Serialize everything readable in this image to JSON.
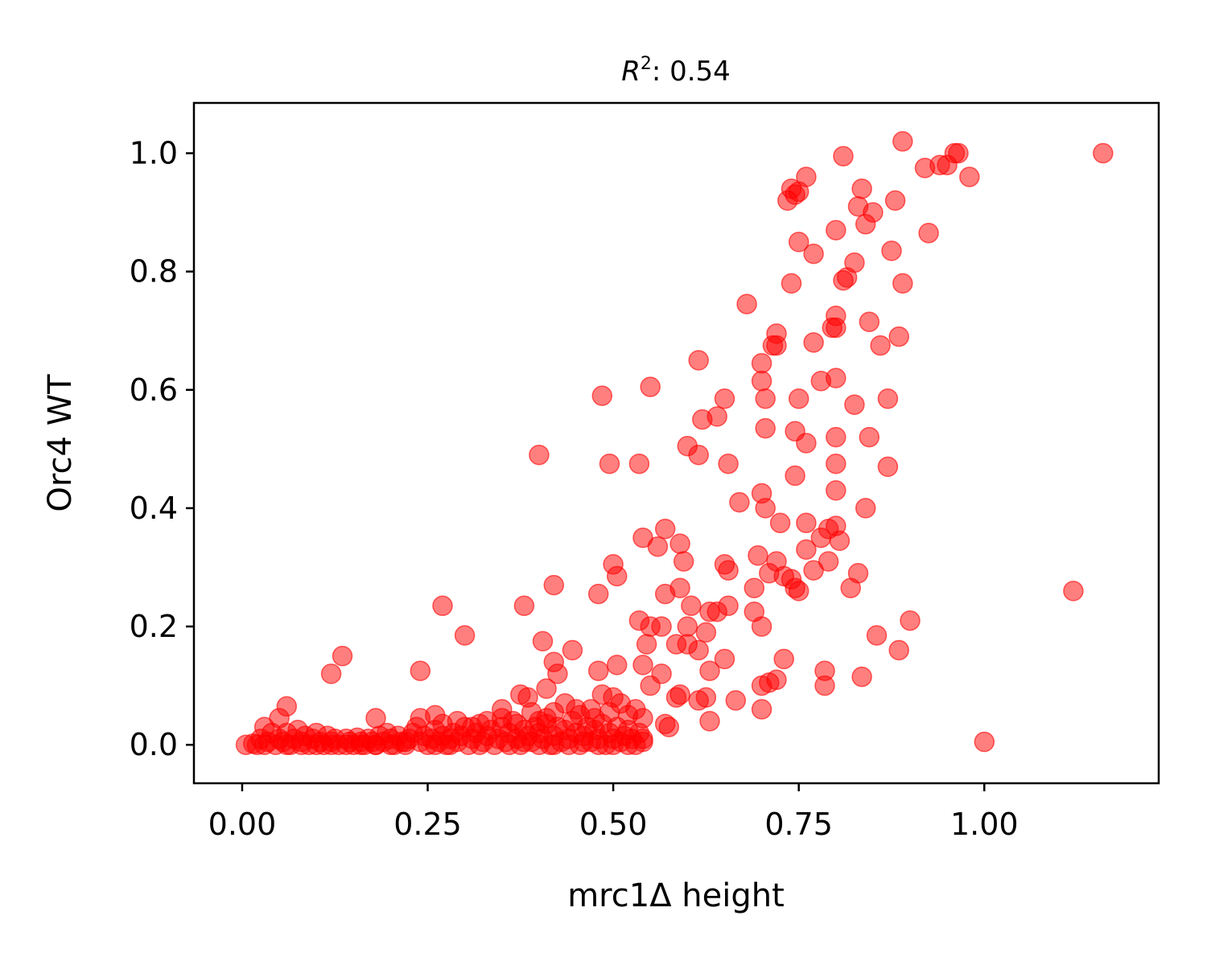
{
  "chart_data": {
    "type": "scatter",
    "title_main": "R",
    "title_sup": "2",
    "title_rest": ": 0.54",
    "xlabel": "mrc1Δ height",
    "ylabel": "Orc4 WT",
    "xlim": [
      -0.065,
      1.235
    ],
    "ylim": [
      -0.065,
      1.085
    ],
    "xticks": [
      0.0,
      0.25,
      0.5,
      0.75,
      1.0
    ],
    "xtick_labels": [
      "0.00",
      "0.25",
      "0.50",
      "0.75",
      "1.00"
    ],
    "yticks": [
      0.0,
      0.2,
      0.4,
      0.6,
      0.8,
      1.0
    ],
    "ytick_labels": [
      "0.0",
      "0.2",
      "0.4",
      "0.6",
      "0.8",
      "1.0"
    ],
    "point_color": "#ff0000",
    "point_alpha": 0.5,
    "points": [
      [
        0.89,
        1.02
      ],
      [
        0.96,
        1.0
      ],
      [
        0.965,
        1.0
      ],
      [
        1.16,
        1.0
      ],
      [
        0.94,
        0.98
      ],
      [
        0.95,
        0.98
      ],
      [
        0.92,
        0.975
      ],
      [
        0.98,
        0.96
      ],
      [
        0.81,
        0.995
      ],
      [
        0.76,
        0.96
      ],
      [
        0.74,
        0.94
      ],
      [
        0.745,
        0.93
      ],
      [
        0.75,
        0.935
      ],
      [
        0.735,
        0.92
      ],
      [
        0.835,
        0.94
      ],
      [
        0.83,
        0.91
      ],
      [
        0.84,
        0.88
      ],
      [
        0.85,
        0.9
      ],
      [
        0.88,
        0.92
      ],
      [
        0.925,
        0.865
      ],
      [
        0.75,
        0.85
      ],
      [
        0.77,
        0.83
      ],
      [
        0.8,
        0.87
      ],
      [
        0.825,
        0.815
      ],
      [
        0.815,
        0.79
      ],
      [
        0.81,
        0.785
      ],
      [
        0.875,
        0.835
      ],
      [
        0.89,
        0.78
      ],
      [
        0.74,
        0.78
      ],
      [
        0.68,
        0.745
      ],
      [
        0.8,
        0.725
      ],
      [
        0.8,
        0.705
      ],
      [
        0.795,
        0.705
      ],
      [
        0.845,
        0.715
      ],
      [
        0.885,
        0.69
      ],
      [
        0.86,
        0.675
      ],
      [
        0.72,
        0.695
      ],
      [
        0.715,
        0.675
      ],
      [
        0.72,
        0.675
      ],
      [
        0.77,
        0.68
      ],
      [
        0.615,
        0.65
      ],
      [
        0.7,
        0.645
      ],
      [
        0.7,
        0.615
      ],
      [
        0.78,
        0.615
      ],
      [
        0.8,
        0.62
      ],
      [
        0.55,
        0.605
      ],
      [
        0.485,
        0.59
      ],
      [
        0.65,
        0.585
      ],
      [
        0.705,
        0.585
      ],
      [
        0.75,
        0.585
      ],
      [
        0.825,
        0.575
      ],
      [
        0.87,
        0.585
      ],
      [
        0.62,
        0.55
      ],
      [
        0.64,
        0.555
      ],
      [
        0.705,
        0.535
      ],
      [
        0.745,
        0.53
      ],
      [
        0.76,
        0.51
      ],
      [
        0.8,
        0.52
      ],
      [
        0.845,
        0.52
      ],
      [
        0.6,
        0.505
      ],
      [
        0.615,
        0.49
      ],
      [
        0.4,
        0.49
      ],
      [
        0.495,
        0.475
      ],
      [
        0.535,
        0.475
      ],
      [
        0.655,
        0.475
      ],
      [
        0.745,
        0.455
      ],
      [
        0.8,
        0.475
      ],
      [
        0.87,
        0.47
      ],
      [
        0.7,
        0.425
      ],
      [
        0.8,
        0.43
      ],
      [
        0.67,
        0.41
      ],
      [
        0.705,
        0.4
      ],
      [
        0.84,
        0.4
      ],
      [
        0.725,
        0.375
      ],
      [
        0.76,
        0.375
      ],
      [
        0.79,
        0.365
      ],
      [
        0.8,
        0.37
      ],
      [
        0.78,
        0.35
      ],
      [
        0.54,
        0.35
      ],
      [
        0.57,
        0.365
      ],
      [
        0.59,
        0.34
      ],
      [
        0.56,
        0.335
      ],
      [
        0.595,
        0.31
      ],
      [
        0.695,
        0.32
      ],
      [
        0.72,
        0.31
      ],
      [
        0.76,
        0.33
      ],
      [
        0.79,
        0.31
      ],
      [
        0.805,
        0.345
      ],
      [
        0.5,
        0.305
      ],
      [
        0.505,
        0.285
      ],
      [
        0.65,
        0.305
      ],
      [
        0.655,
        0.295
      ],
      [
        0.71,
        0.29
      ],
      [
        0.73,
        0.285
      ],
      [
        0.74,
        0.28
      ],
      [
        0.745,
        0.265
      ],
      [
        0.75,
        0.26
      ],
      [
        0.77,
        0.295
      ],
      [
        0.83,
        0.29
      ],
      [
        0.82,
        0.265
      ],
      [
        0.42,
        0.27
      ],
      [
        0.48,
        0.255
      ],
      [
        0.57,
        0.255
      ],
      [
        0.59,
        0.265
      ],
      [
        0.69,
        0.265
      ],
      [
        0.27,
        0.235
      ],
      [
        0.38,
        0.235
      ],
      [
        0.605,
        0.235
      ],
      [
        0.63,
        0.225
      ],
      [
        0.64,
        0.225
      ],
      [
        0.655,
        0.235
      ],
      [
        0.69,
        0.225
      ],
      [
        0.7,
        0.2
      ],
      [
        0.535,
        0.21
      ],
      [
        0.55,
        0.2
      ],
      [
        0.565,
        0.2
      ],
      [
        0.545,
        0.17
      ],
      [
        0.6,
        0.2
      ],
      [
        0.625,
        0.19
      ],
      [
        0.6,
        0.17
      ],
      [
        0.615,
        0.16
      ],
      [
        0.585,
        0.17
      ],
      [
        0.3,
        0.185
      ],
      [
        0.405,
        0.175
      ],
      [
        0.445,
        0.16
      ],
      [
        0.855,
        0.185
      ],
      [
        0.9,
        0.21
      ],
      [
        0.885,
        0.16
      ],
      [
        1.12,
        0.26
      ],
      [
        0.12,
        0.12
      ],
      [
        0.135,
        0.15
      ],
      [
        0.24,
        0.125
      ],
      [
        0.42,
        0.14
      ],
      [
        0.425,
        0.12
      ],
      [
        0.48,
        0.125
      ],
      [
        0.505,
        0.135
      ],
      [
        0.54,
        0.135
      ],
      [
        0.565,
        0.12
      ],
      [
        0.63,
        0.125
      ],
      [
        0.65,
        0.145
      ],
      [
        0.73,
        0.145
      ],
      [
        0.71,
        0.105
      ],
      [
        0.72,
        0.11
      ],
      [
        0.7,
        0.1
      ],
      [
        0.785,
        0.125
      ],
      [
        0.785,
        0.1
      ],
      [
        0.835,
        0.115
      ],
      [
        0.41,
        0.095
      ],
      [
        0.375,
        0.085
      ],
      [
        0.385,
        0.08
      ],
      [
        0.485,
        0.085
      ],
      [
        0.5,
        0.08
      ],
      [
        0.55,
        0.1
      ],
      [
        0.59,
        0.085
      ],
      [
        0.585,
        0.08
      ],
      [
        0.615,
        0.075
      ],
      [
        0.625,
        0.08
      ],
      [
        0.665,
        0.075
      ],
      [
        0.7,
        0.06
      ],
      [
        0.57,
        0.035
      ],
      [
        0.575,
        0.03
      ],
      [
        0.63,
        0.04
      ],
      [
        0.06,
        0.065
      ],
      [
        0.05,
        0.045
      ],
      [
        0.18,
        0.045
      ],
      [
        0.24,
        0.045
      ],
      [
        0.26,
        0.05
      ],
      [
        0.35,
        0.06
      ],
      [
        0.41,
        0.045
      ],
      [
        0.45,
        0.06
      ],
      [
        0.47,
        0.06
      ],
      [
        1.0,
        0.005
      ],
      [
        0.005,
        0.0
      ],
      [
        0.015,
        0.002
      ],
      [
        0.025,
        0.01
      ],
      [
        0.03,
        0.03
      ],
      [
        0.035,
        0.005
      ],
      [
        0.04,
        0.02
      ],
      [
        0.045,
        0.0
      ],
      [
        0.05,
        0.01
      ],
      [
        0.055,
        0.005
      ],
      [
        0.06,
        0.02
      ],
      [
        0.065,
        0.0
      ],
      [
        0.07,
        0.01
      ],
      [
        0.075,
        0.025
      ],
      [
        0.08,
        0.005
      ],
      [
        0.085,
        0.015
      ],
      [
        0.09,
        0.0
      ],
      [
        0.095,
        0.01
      ],
      [
        0.1,
        0.02
      ],
      [
        0.105,
        0.005
      ],
      [
        0.11,
        0.0
      ],
      [
        0.115,
        0.015
      ],
      [
        0.12,
        0.005
      ],
      [
        0.125,
        0.01
      ],
      [
        0.13,
        0.0
      ],
      [
        0.14,
        0.01
      ],
      [
        0.145,
        0.005
      ],
      [
        0.15,
        0.0
      ],
      [
        0.155,
        0.012
      ],
      [
        0.16,
        0.005
      ],
      [
        0.165,
        0.0
      ],
      [
        0.17,
        0.01
      ],
      [
        0.175,
        0.005
      ],
      [
        0.18,
        0.0
      ],
      [
        0.185,
        0.015
      ],
      [
        0.19,
        0.005
      ],
      [
        0.195,
        0.02
      ],
      [
        0.2,
        0.01
      ],
      [
        0.205,
        0.0
      ],
      [
        0.21,
        0.015
      ],
      [
        0.215,
        0.005
      ],
      [
        0.22,
        0.0
      ],
      [
        0.225,
        0.01
      ],
      [
        0.23,
        0.02
      ],
      [
        0.235,
        0.03
      ],
      [
        0.24,
        0.005
      ],
      [
        0.245,
        0.015
      ],
      [
        0.25,
        0.0
      ],
      [
        0.255,
        0.01
      ],
      [
        0.26,
        0.025
      ],
      [
        0.265,
        0.005
      ],
      [
        0.27,
        0.015
      ],
      [
        0.275,
        0.0
      ],
      [
        0.28,
        0.01
      ],
      [
        0.285,
        0.02
      ],
      [
        0.29,
        0.005
      ],
      [
        0.295,
        0.015
      ],
      [
        0.3,
        0.03
      ],
      [
        0.305,
        0.0
      ],
      [
        0.31,
        0.01
      ],
      [
        0.315,
        0.02
      ],
      [
        0.32,
        0.035
      ],
      [
        0.325,
        0.005
      ],
      [
        0.33,
        0.015
      ],
      [
        0.335,
        0.025
      ],
      [
        0.34,
        0.0
      ],
      [
        0.345,
        0.01
      ],
      [
        0.35,
        0.03
      ],
      [
        0.355,
        0.005
      ],
      [
        0.36,
        0.02
      ],
      [
        0.365,
        0.04
      ],
      [
        0.37,
        0.01
      ],
      [
        0.375,
        0.0
      ],
      [
        0.38,
        0.025
      ],
      [
        0.385,
        0.015
      ],
      [
        0.39,
        0.005
      ],
      [
        0.395,
        0.03
      ],
      [
        0.4,
        0.02
      ],
      [
        0.405,
        0.01
      ],
      [
        0.41,
        0.035
      ],
      [
        0.415,
        0.0
      ],
      [
        0.42,
        0.015
      ],
      [
        0.425,
        0.03
      ],
      [
        0.43,
        0.005
      ],
      [
        0.435,
        0.025
      ],
      [
        0.44,
        0.01
      ],
      [
        0.445,
        0.04
      ],
      [
        0.45,
        0.02
      ],
      [
        0.455,
        0.0
      ],
      [
        0.46,
        0.015
      ],
      [
        0.465,
        0.03
      ],
      [
        0.47,
        0.005
      ],
      [
        0.475,
        0.025
      ],
      [
        0.48,
        0.01
      ],
      [
        0.485,
        0.035
      ],
      [
        0.49,
        0.0
      ],
      [
        0.495,
        0.02
      ],
      [
        0.5,
        0.01
      ],
      [
        0.505,
        0.03
      ],
      [
        0.51,
        0.005
      ],
      [
        0.515,
        0.015
      ],
      [
        0.52,
        0.025
      ],
      [
        0.525,
        0.01
      ],
      [
        0.53,
        0.0
      ],
      [
        0.535,
        0.02
      ],
      [
        0.54,
        0.01
      ],
      [
        0.52,
        0.05
      ],
      [
        0.53,
        0.06
      ],
      [
        0.54,
        0.045
      ],
      [
        0.51,
        0.07
      ],
      [
        0.495,
        0.055
      ],
      [
        0.475,
        0.045
      ],
      [
        0.455,
        0.05
      ],
      [
        0.435,
        0.07
      ],
      [
        0.42,
        0.055
      ],
      [
        0.4,
        0.04
      ],
      [
        0.39,
        0.055
      ],
      [
        0.37,
        0.035
      ],
      [
        0.35,
        0.045
      ],
      [
        0.33,
        0.04
      ],
      [
        0.31,
        0.03
      ],
      [
        0.29,
        0.04
      ],
      [
        0.27,
        0.035
      ],
      [
        0.02,
        0.0
      ],
      [
        0.03,
        0.0
      ],
      [
        0.06,
        0.0
      ],
      [
        0.08,
        0.0
      ],
      [
        0.1,
        0.0
      ],
      [
        0.12,
        0.0
      ],
      [
        0.14,
        0.0
      ],
      [
        0.16,
        0.0
      ],
      [
        0.18,
        0.0
      ],
      [
        0.2,
        0.0
      ],
      [
        0.22,
        0.005
      ],
      [
        0.26,
        0.0
      ],
      [
        0.28,
        0.0
      ],
      [
        0.32,
        0.0
      ],
      [
        0.36,
        0.0
      ],
      [
        0.38,
        0.005
      ],
      [
        0.4,
        0.0
      ],
      [
        0.42,
        0.0
      ],
      [
        0.44,
        0.0
      ],
      [
        0.46,
        0.005
      ],
      [
        0.48,
        0.0
      ],
      [
        0.5,
        0.0
      ],
      [
        0.52,
        0.0
      ],
      [
        0.54,
        0.005
      ]
    ]
  }
}
